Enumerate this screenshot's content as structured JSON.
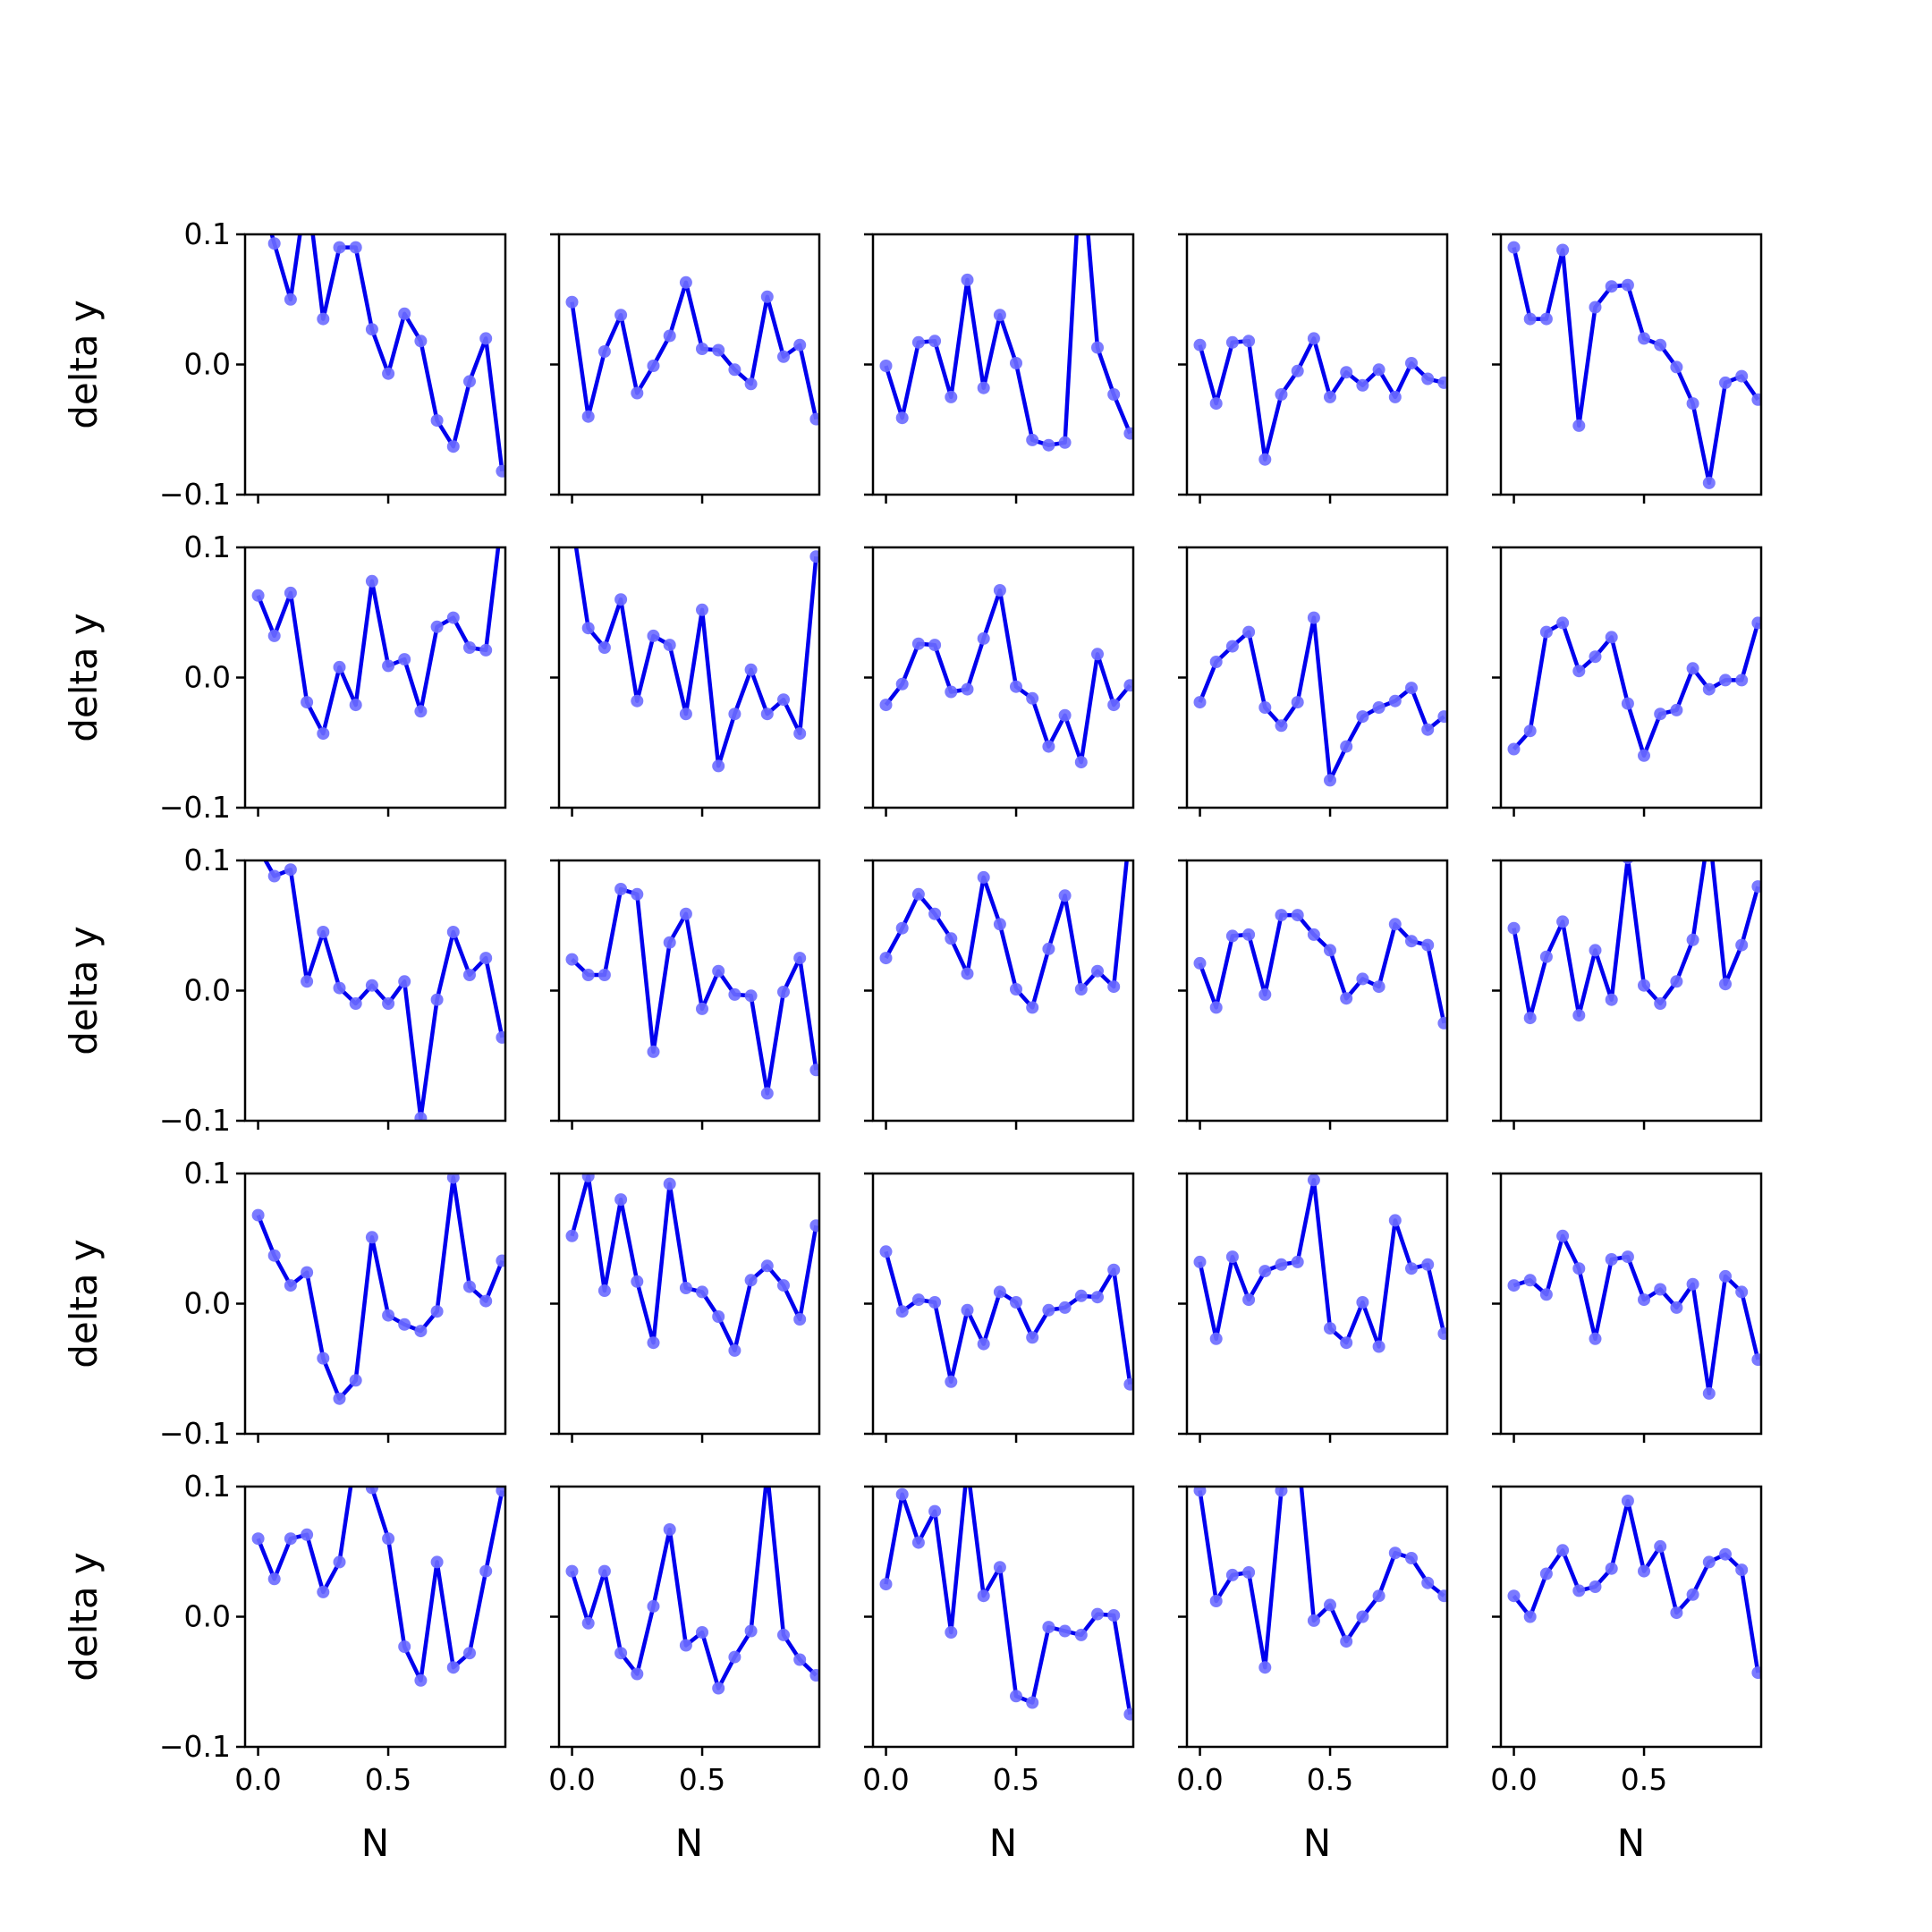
{
  "chart_data": {
    "type": "line",
    "layout": "5x5 grid of small-multiple subplots",
    "x": [
      0.0,
      0.0625,
      0.125,
      0.1875,
      0.25,
      0.3125,
      0.375,
      0.4375,
      0.5,
      0.5625,
      0.625,
      0.6875,
      0.75,
      0.8125,
      0.875,
      0.9375
    ],
    "xlim": [
      -0.05,
      0.95
    ],
    "ylim": [
      -0.1,
      0.1
    ],
    "xticks": [
      0.0,
      0.5
    ],
    "xtick_labels": [
      "0.0",
      "0.5"
    ],
    "yticks": [
      -0.1,
      0.0,
      0.1
    ],
    "ytick_labels": [
      "−0.1",
      "0.0",
      "0.1"
    ],
    "xlabel": "N",
    "ylabel": "delta y",
    "line_color": "#0000ee",
    "marker_color": "#6c6cff",
    "grid": false,
    "panels": [
      [
        0.137,
        0.093,
        0.05,
        0.137,
        0.035,
        0.09,
        0.09,
        0.027,
        -0.007,
        0.039,
        0.018,
        -0.043,
        -0.063,
        -0.013,
        0.02,
        -0.082
      ],
      [
        0.048,
        -0.04,
        0.01,
        0.038,
        -0.022,
        -0.001,
        0.022,
        0.063,
        0.012,
        0.011,
        -0.004,
        -0.015,
        0.052,
        0.006,
        0.015,
        -0.042
      ],
      [
        -0.001,
        -0.041,
        0.017,
        0.018,
        -0.025,
        0.065,
        -0.018,
        0.038,
        0.001,
        -0.058,
        -0.062,
        -0.06,
        0.164,
        0.013,
        -0.023,
        -0.053
      ],
      [
        0.015,
        -0.03,
        0.017,
        0.018,
        -0.073,
        -0.023,
        -0.005,
        0.02,
        -0.025,
        -0.006,
        -0.016,
        -0.004,
        -0.025,
        0.001,
        -0.011,
        -0.014
      ],
      [
        0.09,
        0.035,
        0.035,
        0.088,
        -0.047,
        0.044,
        0.06,
        0.061,
        0.02,
        0.015,
        -0.002,
        -0.03,
        -0.091,
        -0.014,
        -0.009,
        -0.027
      ],
      [
        0.063,
        0.032,
        0.065,
        -0.019,
        -0.043,
        0.008,
        -0.021,
        0.074,
        0.009,
        0.014,
        -0.026,
        0.039,
        0.046,
        0.023,
        0.021,
        0.125
      ],
      [
        0.121,
        0.038,
        0.023,
        0.06,
        -0.018,
        0.032,
        0.025,
        -0.028,
        0.052,
        -0.068,
        -0.028,
        0.006,
        -0.028,
        -0.017,
        -0.043,
        0.093
      ],
      [
        -0.021,
        -0.005,
        0.026,
        0.025,
        -0.011,
        -0.009,
        0.03,
        0.067,
        -0.007,
        -0.016,
        -0.053,
        -0.029,
        -0.065,
        0.018,
        -0.021,
        -0.006
      ],
      [
        -0.019,
        0.012,
        0.024,
        0.035,
        -0.023,
        -0.037,
        -0.019,
        0.046,
        -0.079,
        -0.053,
        -0.03,
        -0.023,
        -0.018,
        -0.008,
        -0.04,
        -0.03
      ],
      [
        -0.055,
        -0.041,
        0.035,
        0.042,
        0.005,
        0.016,
        0.031,
        -0.02,
        -0.06,
        -0.028,
        -0.025,
        0.007,
        -0.009,
        -0.002,
        -0.002,
        0.042
      ],
      [
        0.11,
        0.088,
        0.093,
        0.007,
        0.045,
        0.002,
        -0.01,
        0.004,
        -0.01,
        0.007,
        -0.098,
        -0.007,
        0.045,
        0.012,
        0.025,
        -0.036
      ],
      [
        0.024,
        0.012,
        0.012,
        0.078,
        0.074,
        -0.047,
        0.037,
        0.059,
        -0.014,
        0.015,
        -0.003,
        -0.004,
        -0.079,
        -0.001,
        0.025,
        -0.061
      ],
      [
        0.025,
        0.048,
        0.074,
        0.059,
        0.04,
        0.013,
        0.087,
        0.051,
        0.001,
        -0.013,
        0.032,
        0.073,
        0.001,
        0.015,
        0.003,
        0.125
      ],
      [
        0.021,
        -0.013,
        0.042,
        0.043,
        -0.003,
        0.058,
        0.058,
        0.043,
        0.031,
        -0.006,
        0.009,
        0.003,
        0.051,
        0.038,
        0.035,
        -0.025
      ],
      [
        0.048,
        -0.021,
        0.026,
        0.053,
        -0.019,
        0.031,
        -0.007,
        0.102,
        0.004,
        -0.01,
        0.007,
        0.039,
        0.124,
        0.005,
        0.035,
        0.08
      ],
      [
        0.068,
        0.037,
        0.014,
        0.024,
        -0.042,
        -0.073,
        -0.059,
        0.051,
        -0.009,
        -0.016,
        -0.021,
        -0.006,
        0.097,
        0.013,
        0.002,
        0.033
      ],
      [
        0.052,
        0.098,
        0.01,
        0.08,
        0.017,
        -0.03,
        0.092,
        0.012,
        0.009,
        -0.01,
        -0.036,
        0.018,
        0.029,
        0.014,
        -0.012,
        0.06
      ],
      [
        0.04,
        -0.006,
        0.003,
        0.001,
        -0.06,
        -0.005,
        -0.031,
        0.009,
        0.001,
        -0.026,
        -0.005,
        -0.003,
        0.006,
        0.005,
        0.026,
        -0.062
      ],
      [
        0.032,
        -0.027,
        0.036,
        0.003,
        0.025,
        0.03,
        0.032,
        0.095,
        -0.019,
        -0.03,
        0.001,
        -0.033,
        0.064,
        0.027,
        0.03,
        -0.023
      ],
      [
        0.014,
        0.018,
        0.007,
        0.052,
        0.027,
        -0.027,
        0.034,
        0.036,
        0.003,
        0.011,
        -0.003,
        0.015,
        -0.069,
        0.021,
        0.009,
        -0.043
      ],
      [
        0.06,
        0.029,
        0.06,
        0.063,
        0.019,
        0.042,
        0.126,
        0.099,
        0.06,
        -0.023,
        -0.049,
        0.042,
        -0.039,
        -0.028,
        0.035,
        0.097
      ],
      [
        0.035,
        -0.005,
        0.035,
        -0.028,
        -0.044,
        0.008,
        0.067,
        -0.022,
        -0.012,
        -0.055,
        -0.031,
        -0.011,
        0.111,
        -0.014,
        -0.033,
        -0.045
      ],
      [
        0.025,
        0.094,
        0.057,
        0.081,
        -0.012,
        0.116,
        0.016,
        0.038,
        -0.061,
        -0.066,
        -0.008,
        -0.011,
        -0.014,
        0.002,
        0.001,
        -0.075
      ],
      [
        0.097,
        0.012,
        0.032,
        0.034,
        -0.039,
        0.097,
        0.131,
        -0.003,
        0.009,
        -0.019,
        0.0,
        0.016,
        0.049,
        0.045,
        0.026,
        0.016
      ],
      [
        0.016,
        0.0,
        0.033,
        0.051,
        0.02,
        0.023,
        0.037,
        0.089,
        0.035,
        0.054,
        0.003,
        0.017,
        0.042,
        0.048,
        0.036,
        -0.043
      ]
    ]
  }
}
